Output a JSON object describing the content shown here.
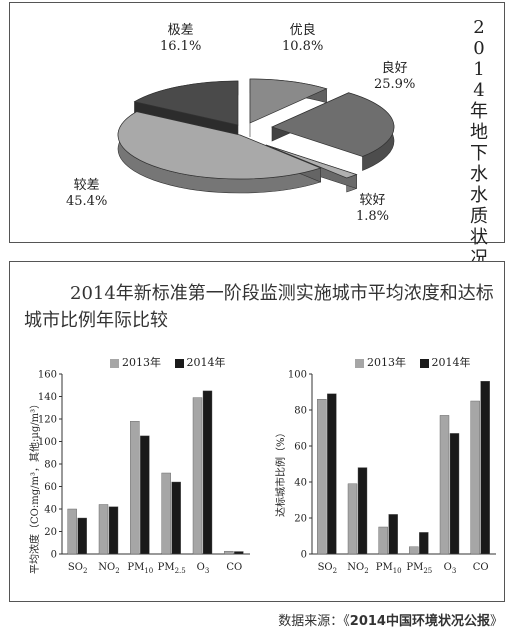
{
  "chart_data": [
    {
      "type": "pie",
      "title": "2014年地下水水质状况",
      "slices": [
        {
          "name": "优良",
          "value": 10.8,
          "label": "10.8%",
          "color": "#8a8a8a"
        },
        {
          "name": "良好",
          "value": 25.9,
          "label": "25.9%",
          "color": "#6e6e6e"
        },
        {
          "name": "较好",
          "value": 1.8,
          "label": "1.8%",
          "color": "#b0b0b0"
        },
        {
          "name": "较差",
          "value": 45.4,
          "label": "45.4%",
          "color": "#a9a9a9"
        },
        {
          "name": "极差",
          "value": 16.1,
          "label": "16.1%",
          "color": "#4a4a4a"
        }
      ]
    },
    {
      "type": "bar",
      "title": "2014年新标准第一阶段监测实施城市平均浓度和达标城市比例年际比较",
      "categories": [
        "SO2",
        "NO2",
        "PM10",
        "PM2.5",
        "O3",
        "CO"
      ],
      "category_labels": [
        {
          "base": "SO",
          "sub": "2"
        },
        {
          "base": "NO",
          "sub": "2"
        },
        {
          "base": "PM",
          "sub": "10"
        },
        {
          "base": "PM",
          "sub": "2.5"
        },
        {
          "base": "O",
          "sub": "3"
        },
        {
          "base": "CO",
          "sub": ""
        }
      ],
      "ylabel": "平均浓度（CO:mg/m³，其他:μg/m³）",
      "ylim": [
        0,
        160
      ],
      "yticks": [
        0,
        20,
        40,
        60,
        80,
        100,
        120,
        140,
        160
      ],
      "series": [
        {
          "name": "2013年",
          "color": "#a6a6a6",
          "values": [
            40,
            44,
            118,
            72,
            139,
            2.5
          ]
        },
        {
          "name": "2014年",
          "color": "#1a1a1a",
          "values": [
            32,
            42,
            105,
            64,
            145,
            2.2
          ]
        }
      ]
    },
    {
      "type": "bar",
      "categories": [
        "SO2",
        "NO2",
        "PM10",
        "PM2.5",
        "O3",
        "CO"
      ],
      "category_labels": [
        {
          "base": "SO",
          "sub": "2"
        },
        {
          "base": "NO",
          "sub": "2"
        },
        {
          "base": "PM",
          "sub": "10"
        },
        {
          "base": "PM",
          "sub": "25"
        },
        {
          "base": "O",
          "sub": "3"
        },
        {
          "base": "CO",
          "sub": ""
        }
      ],
      "ylabel": "达标城市比例（%）",
      "ylim": [
        0,
        100
      ],
      "yticks": [
        0,
        20,
        40,
        60,
        80,
        100
      ],
      "series": [
        {
          "name": "2013年",
          "color": "#a6a6a6",
          "values": [
            86,
            39,
            15,
            4,
            77,
            85
          ]
        },
        {
          "name": "2014年",
          "color": "#1a1a1a",
          "values": [
            89,
            48,
            22,
            12,
            67,
            96
          ]
        }
      ]
    }
  ],
  "pie_title_chars": [
    "2",
    "0",
    "1",
    "4",
    "年",
    "地",
    "下",
    "水",
    "水",
    "质",
    "状",
    "况"
  ],
  "legend": {
    "y2013": "2013年",
    "y2014": "2014年"
  },
  "source": {
    "prefix": "数据来源：",
    "open": "《",
    "name": "2014中国环境状况公报",
    "close": "》"
  }
}
